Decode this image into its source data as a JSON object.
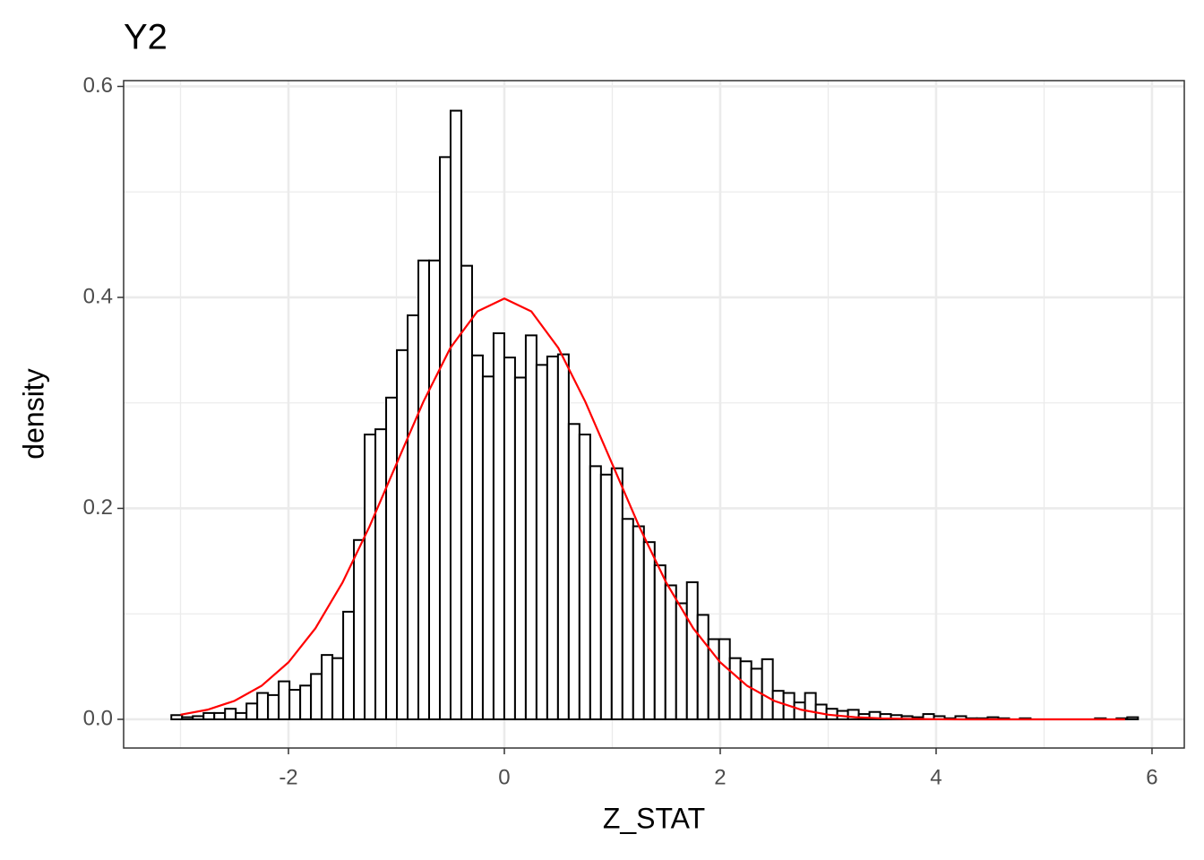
{
  "chart_data": {
    "type": "histogram",
    "title": "Y2",
    "x_label": "Z_STAT",
    "y_label": "density",
    "bins": [
      -3.085,
      -2.9855,
      -2.886,
      -2.7865,
      -2.687,
      -2.5875,
      -2.488,
      -2.3885,
      -2.289,
      -2.1895,
      -2.09,
      -1.9905,
      -1.891,
      -1.7915,
      -1.692,
      -1.5925,
      -1.493,
      -1.3935,
      -1.294,
      -1.1945,
      -1.095,
      -0.9955,
      -0.896,
      -0.7965,
      -0.697,
      -0.5975,
      -0.498,
      -0.3985,
      -0.299,
      -0.1995,
      -0.1,
      -0.0005,
      0.099,
      0.1985,
      0.298,
      0.3975,
      0.497,
      0.5965,
      0.696,
      0.7955,
      0.895,
      0.9945,
      1.094,
      1.1935,
      1.293,
      1.3925,
      1.492,
      1.5915,
      1.691,
      1.7905,
      1.89,
      1.9895,
      2.089,
      2.1885,
      2.288,
      2.3875,
      2.487,
      2.5865,
      2.686,
      2.7855,
      2.885,
      2.9845,
      3.084,
      3.1835,
      3.283,
      3.3825,
      3.482,
      3.5815,
      3.681,
      3.7805,
      3.88,
      3.9795,
      4.079,
      4.1785,
      4.278,
      4.3775,
      4.477,
      4.5765,
      4.676,
      4.7755,
      4.875,
      4.9745,
      5.074,
      5.1735,
      5.273,
      5.3725,
      5.472,
      5.5715,
      5.671,
      5.7705,
      5.87
    ],
    "values": [
      0.004,
      0.002,
      0.003,
      0.006,
      0.006,
      0.01,
      0.006,
      0.015,
      0.025,
      0.023,
      0.036,
      0.028,
      0.032,
      0.043,
      0.061,
      0.058,
      0.102,
      0.17,
      0.27,
      0.275,
      0.305,
      0.35,
      0.383,
      0.435,
      0.435,
      0.533,
      0.577,
      0.43,
      0.345,
      0.325,
      0.366,
      0.343,
      0.324,
      0.364,
      0.336,
      0.344,
      0.346,
      0.28,
      0.27,
      0.24,
      0.232,
      0.238,
      0.19,
      0.183,
      0.168,
      0.146,
      0.127,
      0.11,
      0.13,
      0.099,
      0.076,
      0.076,
      0.058,
      0.055,
      0.048,
      0.057,
      0.027,
      0.025,
      0.016,
      0.025,
      0.014,
      0.01,
      0.008,
      0.009,
      0.005,
      0.007,
      0.005,
      0.004,
      0.003,
      0.002,
      0.005,
      0.003,
      0.001,
      0.003,
      0.001,
      0.001,
      0.002,
      0.001,
      0,
      0.001,
      0,
      0,
      0,
      0,
      0,
      0,
      0.001,
      0,
      0.001,
      0.002
    ],
    "fill": "#ffffff",
    "edge_color": "#000000",
    "overlay": {
      "type": "line",
      "color": "#ff0000",
      "x": [
        -3,
        -2.75,
        -2.5,
        -2.25,
        -2,
        -1.75,
        -1.5,
        -1.25,
        -1,
        -0.75,
        -0.5,
        -0.25,
        0,
        0.25,
        0.5,
        0.75,
        1,
        1.25,
        1.5,
        1.75,
        2,
        2.25,
        2.5,
        2.75,
        3,
        3.25,
        3.5,
        3.75,
        4,
        4.25,
        4.5,
        4.75,
        5,
        5.25,
        5.5,
        5.75
      ],
      "values": [
        0.0044,
        0.0091,
        0.0175,
        0.0317,
        0.054,
        0.0863,
        0.1295,
        0.1826,
        0.242,
        0.3011,
        0.3521,
        0.3867,
        0.3989,
        0.3867,
        0.3521,
        0.3011,
        0.242,
        0.1826,
        0.1295,
        0.0863,
        0.054,
        0.0317,
        0.0175,
        0.0091,
        0.0044,
        0.002,
        0.0009,
        0.0004,
        0.0001,
        0,
        0,
        0,
        0,
        0,
        0,
        0
      ]
    },
    "xlim": [
      -3.527,
      6.299
    ],
    "xticks": [
      -2,
      0,
      2,
      4,
      6
    ],
    "ylim": [
      -0.0272,
      0.6055
    ],
    "yticks": [
      {
        "value": 0,
        "label": "0.0"
      },
      0.2,
      0.4,
      0.6
    ],
    "grid": true,
    "minor_xgrid": [
      -3,
      -1,
      1,
      3,
      5
    ],
    "minor_ygrid": [
      0.1,
      0.3,
      0.5
    ]
  }
}
